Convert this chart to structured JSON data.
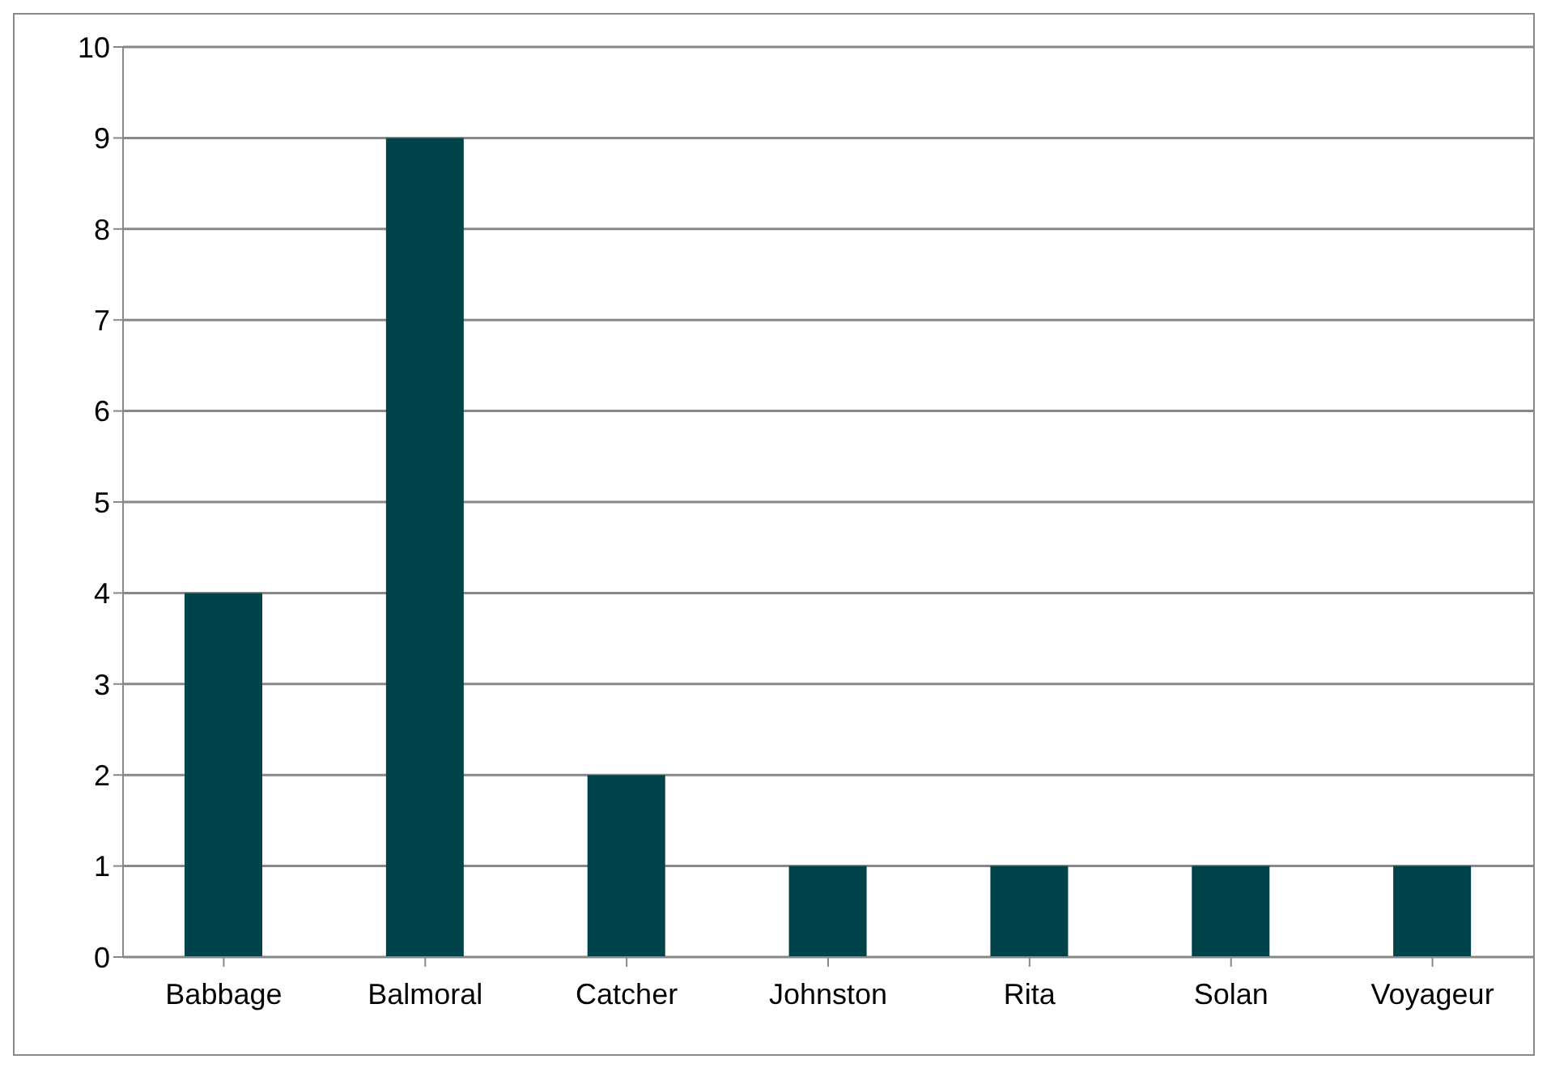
{
  "chart_data": {
    "type": "bar",
    "categories": [
      "Babbage",
      "Balmoral",
      "Catcher",
      "Johnston",
      "Rita",
      "Solan",
      "Voyageur"
    ],
    "values": [
      4,
      9,
      2,
      1,
      1,
      1,
      1
    ],
    "color": "#00434a",
    "ylim": [
      0,
      10
    ],
    "yticks": [
      0,
      1,
      2,
      3,
      4,
      5,
      6,
      7,
      8,
      9,
      10
    ],
    "grid": "y"
  }
}
